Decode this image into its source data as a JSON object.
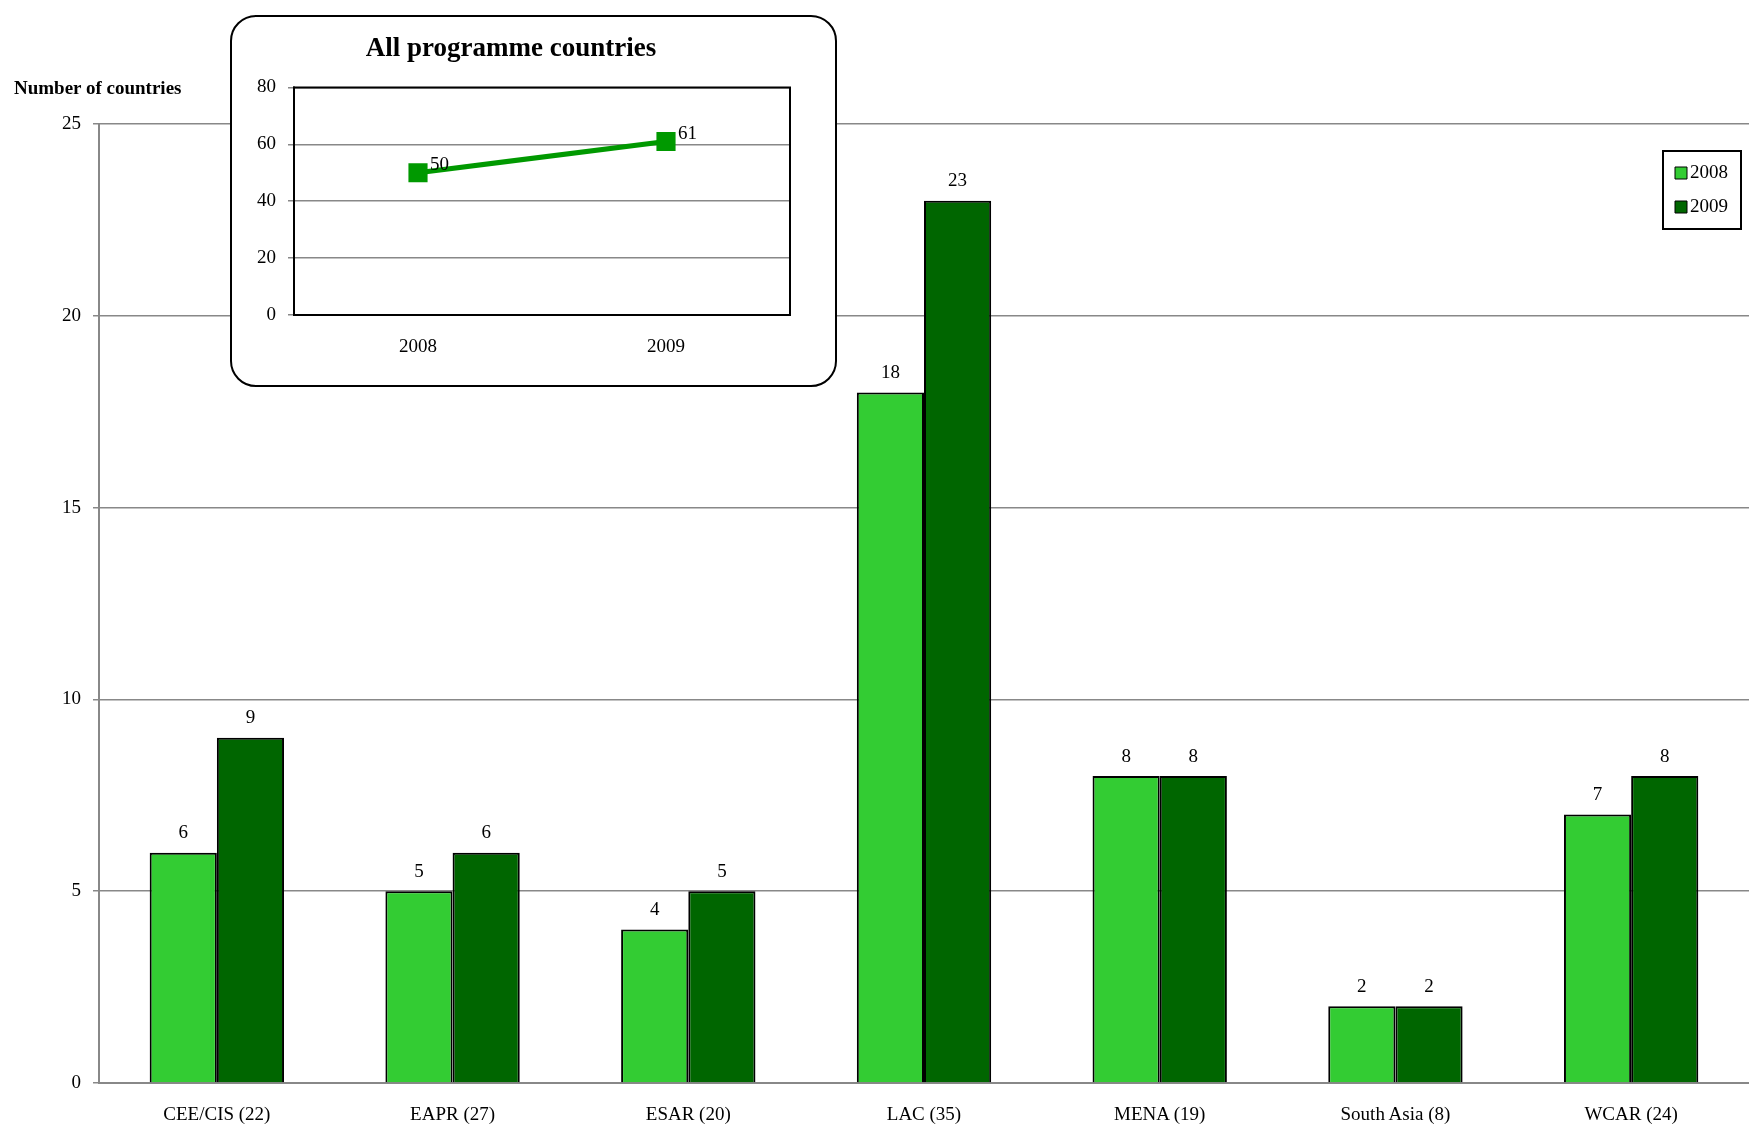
{
  "chart_data": [
    {
      "type": "bar",
      "ylabel": "Number of countries",
      "categories": [
        "CEE/CIS (22)",
        "EAPR (27)",
        "ESAR (20)",
        "LAC (35)",
        "MENA (19)",
        "South Asia (8)",
        "WCAR (24)"
      ],
      "series": [
        {
          "name": "2008",
          "color": "#33cc33",
          "values": [
            6,
            5,
            4,
            18,
            8,
            2,
            7
          ]
        },
        {
          "name": "2009",
          "color": "#006600",
          "values": [
            9,
            6,
            5,
            23,
            8,
            2,
            8
          ]
        }
      ],
      "ylim": [
        0,
        25
      ],
      "yticks": [
        0,
        5,
        10,
        15,
        20,
        25
      ],
      "grid": "y",
      "legend": "top right",
      "data_labels": true
    },
    {
      "type": "line",
      "title": "All programme countries",
      "categories": [
        "2008",
        "2009"
      ],
      "series": [
        {
          "color": "#009900",
          "values": [
            50,
            61
          ]
        }
      ],
      "ylim": [
        0,
        80
      ],
      "yticks": [
        0,
        20,
        40,
        60,
        80
      ],
      "grid": "y",
      "marker": "square",
      "data_labels": true
    }
  ]
}
